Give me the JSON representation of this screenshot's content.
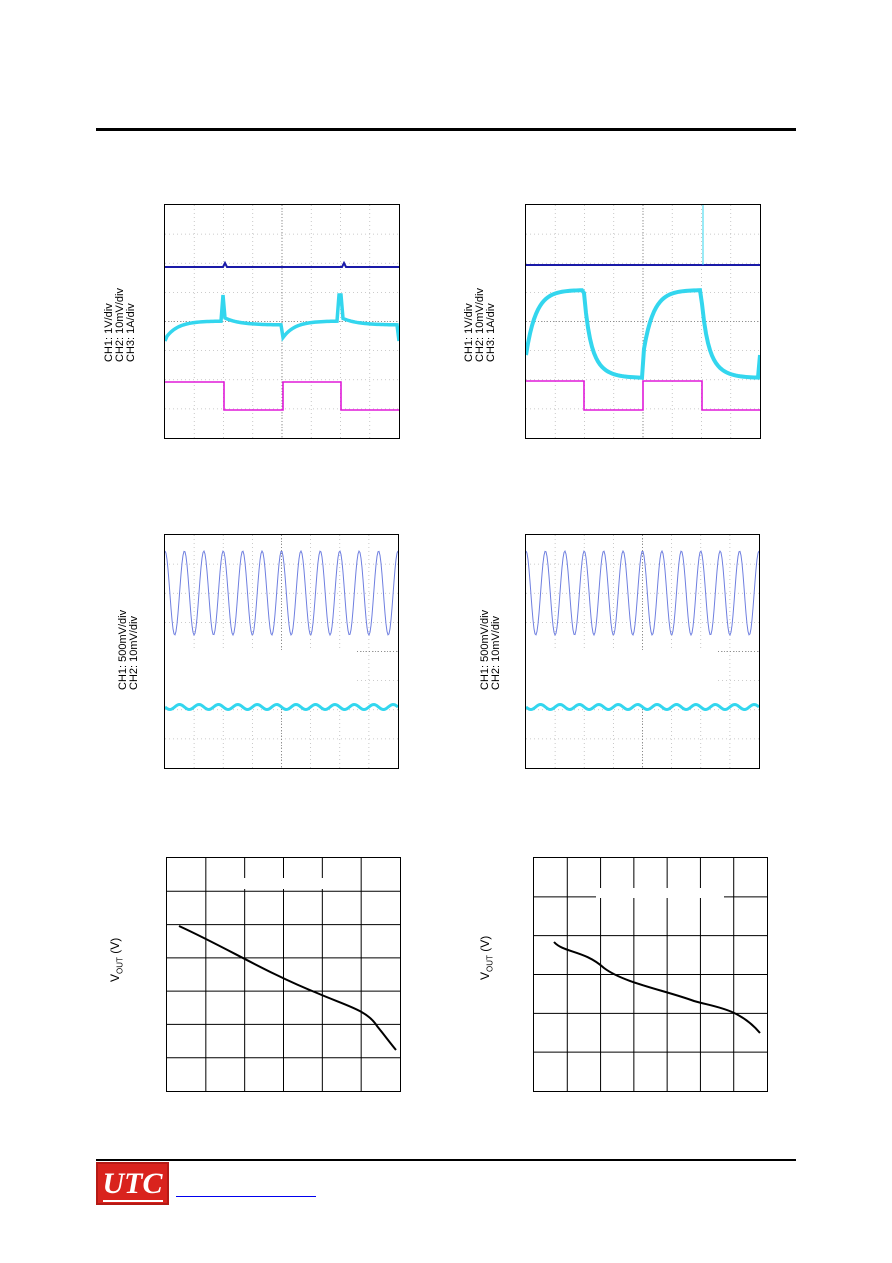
{
  "scopes": {
    "top_left": {
      "ch_lines": [
        "CH1: 1V/div",
        "CH2: 10mV/div",
        "CH3: 1A/div"
      ]
    },
    "top_right": {
      "ch_lines": [
        "CH1: 1V/div",
        "CH2: 10mV/div",
        "CH3: 1A/div"
      ]
    },
    "mid_left": {
      "ch_lines": [
        "CH1: 500mV/div",
        "CH2: 10mV/div"
      ]
    },
    "mid_right": {
      "ch_lines": [
        "CH1: 500mV/div",
        "CH2: 10mV/div"
      ]
    },
    "colors": {
      "ch1": "#1a1aa8",
      "ch2": "#33d6ee",
      "ch3": "#e01ad8",
      "sine": "#6f7fe0"
    }
  },
  "graphs": {
    "left": {
      "ylabel_main": "V",
      "ylabel_sub": "OUT",
      "ylabel_unit": " (V)"
    },
    "right": {
      "ylabel_main": "V",
      "ylabel_sub": "OUT",
      "ylabel_unit": " (V)"
    }
  },
  "footer": {
    "logo_text": "UTC"
  }
}
